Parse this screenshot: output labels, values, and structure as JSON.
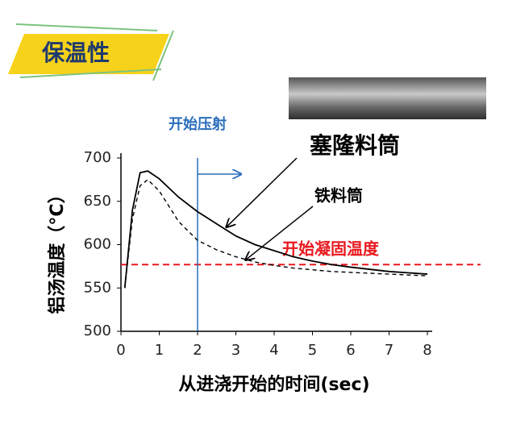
{
  "header": {
    "title": "保温性"
  },
  "chart_data": {
    "type": "line",
    "x": [
      0.1,
      0.3,
      0.5,
      0.7,
      1,
      1.5,
      2,
      2.5,
      3,
      3.5,
      4,
      4.5,
      5,
      5.5,
      6,
      7,
      8
    ],
    "series": [
      {
        "name": "塞隆料筒",
        "color": "#000000",
        "dash": "solid",
        "values": [
          550,
          640,
          683,
          685,
          676,
          655,
          638,
          624,
          610,
          600,
          593,
          586,
          581,
          577,
          574,
          569,
          566
        ]
      },
      {
        "name": "铁料筒",
        "color": "#000000",
        "dash": "dashed",
        "values": [
          550,
          630,
          668,
          675,
          662,
          627,
          605,
          594,
          586,
          580,
          576,
          573,
          571,
          569,
          568,
          566,
          564
        ]
      }
    ],
    "xlim": [
      0,
      8
    ],
    "xticks": [
      0,
      1,
      2,
      3,
      4,
      5,
      6,
      7,
      8
    ],
    "ylim": [
      500,
      700
    ],
    "yticks": [
      500,
      550,
      600,
      650,
      700
    ],
    "x_label": "从进浇开始的时间(sec)",
    "y_label": "铝汤温度（°C）",
    "threshold": {
      "value": 577,
      "label": "开始凝固温度",
      "color": "#e8191f"
    },
    "start_marker": {
      "x": 2,
      "label": "开始压射",
      "color": "#2a6ebb"
    }
  }
}
